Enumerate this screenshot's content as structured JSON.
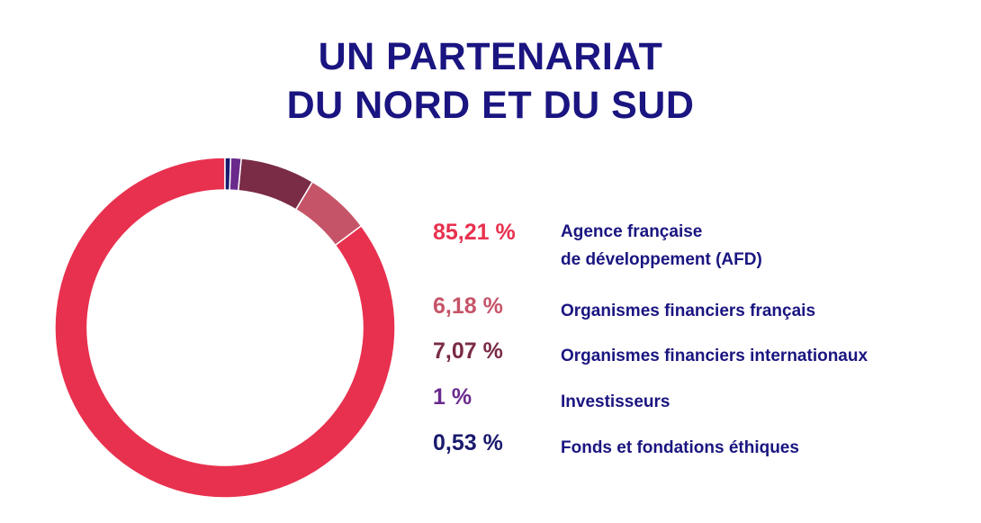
{
  "title": {
    "line1": "UN PARTENARIAT",
    "line2": "DU NORD ET DU SUD"
  },
  "chart_data": {
    "type": "pie",
    "style": "donut",
    "title": "UN PARTENARIAT DU NORD ET DU SUD",
    "legend_position": "right",
    "slices": [
      {
        "value": 85.21,
        "value_label": "85,21 %",
        "label_lines": [
          "Agence française",
          "de développement (AFD)"
        ],
        "color": "#e8314f"
      },
      {
        "value": 6.18,
        "value_label": "6,18 %",
        "label_lines": [
          "Organismes financiers français"
        ],
        "color": "#c65468"
      },
      {
        "value": 7.07,
        "value_label": "7,07 %",
        "label_lines": [
          "Organismes financiers internationaux"
        ],
        "color": "#7a2b45"
      },
      {
        "value": 1,
        "value_label": "1 %",
        "label_lines": [
          "Investisseurs"
        ],
        "color": "#6a2a8c"
      },
      {
        "value": 0.53,
        "value_label": "0,53 %",
        "label_lines": [
          "Fonds et fondations éthiques"
        ],
        "color": "#1a1a6e"
      }
    ]
  }
}
